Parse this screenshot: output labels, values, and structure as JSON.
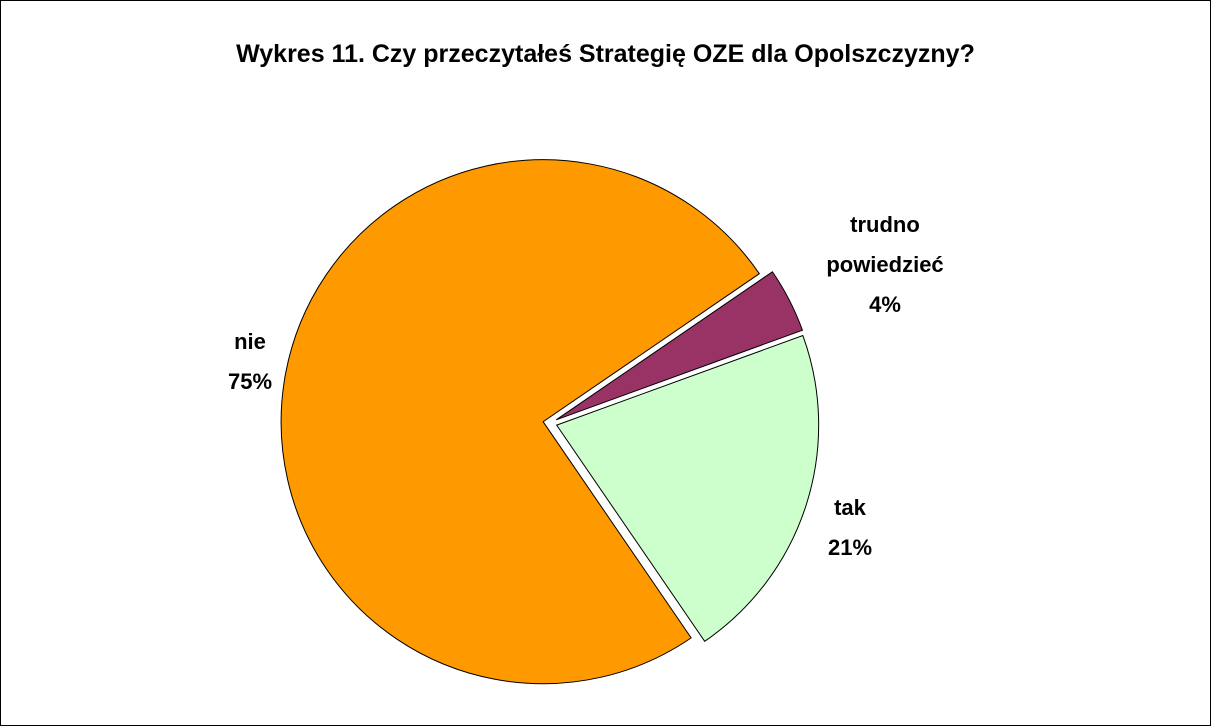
{
  "chart_data": {
    "type": "pie",
    "title": "Wykres 11. Czy przeczytałeś Strategię OZE dla Opolszczyzny?",
    "categories": [
      "trudno powiedzieć",
      "tak",
      "nie"
    ],
    "values": [
      4,
      21,
      75
    ],
    "value_labels": [
      "4%",
      "21%",
      "75%"
    ],
    "colors": [
      "#993366",
      "#ccffcc",
      "#ff9900"
    ]
  }
}
